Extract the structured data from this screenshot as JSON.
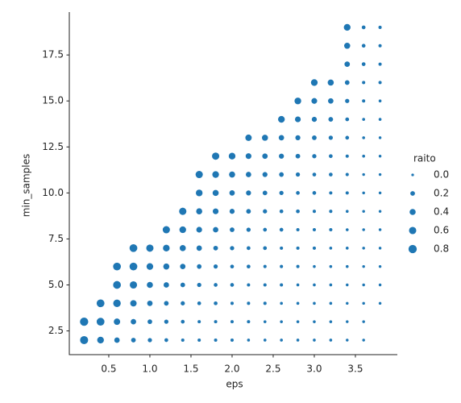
{
  "chart_data": {
    "type": "scatter",
    "xlabel": "eps",
    "ylabel": "min_samples",
    "legend_title": "raito",
    "color": "#1f77b4",
    "xlim": [
      0.02,
      4.01
    ],
    "ylim": [
      1.21,
      19.83
    ],
    "xticks": [
      0.5,
      {
        "value": 1,
        "label": "1.0"
      },
      1.5,
      {
        "value": 2,
        "label": "2.0"
      },
      2.5,
      {
        "value": 3,
        "label": "3.0"
      },
      3.5
    ],
    "yticks": [
      2.5,
      {
        "value": 5,
        "label": "5.0"
      },
      7.5,
      {
        "value": 10,
        "label": "10.0"
      },
      12.5,
      {
        "value": 15,
        "label": "15.0"
      },
      17.5
    ],
    "size_ticks": [
      {
        "value": 0,
        "label": "0.0"
      },
      0.2,
      0.4,
      0.6,
      0.8
    ],
    "x": [
      0.2,
      0.2,
      0.4,
      0.4,
      0.4,
      0.6,
      0.6,
      0.6,
      0.6,
      0.6,
      0.8,
      0.8,
      0.8,
      0.8,
      0.8,
      0.8,
      1,
      1,
      1,
      1,
      1,
      1,
      1.2,
      1.2,
      1.2,
      1.2,
      1.2,
      1.2,
      1.2,
      1.4,
      1.4,
      1.4,
      1.4,
      1.4,
      1.4,
      1.4,
      1.4,
      1.6,
      1.6,
      1.6,
      1.6,
      1.6,
      1.6,
      1.6,
      1.6,
      1.6,
      1.6,
      1.8,
      1.8,
      1.8,
      1.8,
      1.8,
      1.8,
      1.8,
      1.8,
      1.8,
      1.8,
      1.8,
      2,
      2,
      2,
      2,
      2,
      2,
      2,
      2,
      2,
      2,
      2,
      2.2,
      2.2,
      2.2,
      2.2,
      2.2,
      2.2,
      2.2,
      2.2,
      2.2,
      2.2,
      2.2,
      2.2,
      2.4,
      2.4,
      2.4,
      2.4,
      2.4,
      2.4,
      2.4,
      2.4,
      2.4,
      2.4,
      2.4,
      2.4,
      2.6,
      2.6,
      2.6,
      2.6,
      2.6,
      2.6,
      2.6,
      2.6,
      2.6,
      2.6,
      2.6,
      2.6,
      2.6,
      2.8,
      2.8,
      2.8,
      2.8,
      2.8,
      2.8,
      2.8,
      2.8,
      2.8,
      2.8,
      2.8,
      2.8,
      2.8,
      2.8,
      3,
      3,
      3,
      3,
      3,
      3,
      3,
      3,
      3,
      3,
      3,
      3,
      3,
      3,
      3,
      3.2,
      3.2,
      3.2,
      3.2,
      3.2,
      3.2,
      3.2,
      3.2,
      3.2,
      3.2,
      3.2,
      3.2,
      3.2,
      3.2,
      3.2,
      3.4,
      3.4,
      3.4,
      3.4,
      3.4,
      3.4,
      3.4,
      3.4,
      3.4,
      3.4,
      3.4,
      3.4,
      3.4,
      3.4,
      3.4,
      3.4,
      3.4,
      3.4,
      3.6,
      3.6,
      3.6,
      3.6,
      3.6,
      3.6,
      3.6,
      3.6,
      3.6,
      3.6,
      3.6,
      3.6,
      3.6,
      3.6,
      3.6,
      3.6,
      3.6,
      3.6,
      3.8,
      3.8,
      3.8,
      3.8,
      3.8,
      3.8,
      3.8,
      3.8,
      3.8,
      3.8,
      3.8,
      3.8,
      3.8,
      3.8,
      3.8,
      3.8
    ],
    "values": [
      2,
      3,
      2,
      3,
      4,
      2,
      3,
      4,
      5,
      6,
      2,
      3,
      4,
      5,
      6,
      7,
      2,
      3,
      4,
      5,
      6,
      7,
      2,
      3,
      4,
      5,
      6,
      7,
      8,
      2,
      3,
      4,
      5,
      6,
      7,
      8,
      9,
      2,
      3,
      4,
      5,
      6,
      7,
      8,
      9,
      10,
      11,
      2,
      3,
      4,
      5,
      6,
      7,
      8,
      9,
      10,
      11,
      12,
      2,
      3,
      4,
      5,
      6,
      7,
      8,
      9,
      10,
      11,
      12,
      2,
      3,
      4,
      5,
      6,
      7,
      8,
      9,
      10,
      11,
      12,
      13,
      2,
      3,
      4,
      5,
      6,
      7,
      8,
      9,
      10,
      11,
      12,
      13,
      2,
      3,
      4,
      5,
      6,
      7,
      8,
      9,
      10,
      11,
      12,
      13,
      14,
      2,
      3,
      4,
      5,
      6,
      7,
      8,
      9,
      10,
      11,
      12,
      13,
      14,
      15,
      2,
      3,
      4,
      5,
      6,
      7,
      8,
      9,
      10,
      11,
      12,
      13,
      14,
      15,
      16,
      2,
      3,
      4,
      5,
      6,
      7,
      8,
      9,
      10,
      11,
      12,
      13,
      14,
      15,
      16,
      2,
      3,
      4,
      5,
      6,
      7,
      8,
      9,
      10,
      11,
      12,
      13,
      14,
      15,
      16,
      17,
      18,
      19,
      2,
      3,
      4,
      5,
      6,
      7,
      8,
      9,
      10,
      11,
      12,
      13,
      14,
      15,
      16,
      17,
      18,
      19,
      4,
      5,
      6,
      7,
      8,
      9,
      10,
      11,
      12,
      13,
      14,
      15,
      16,
      17,
      18,
      19
    ],
    "sizes": [
      0.75,
      0.8,
      0.5,
      0.7,
      0.7,
      0.3,
      0.45,
      0.65,
      0.7,
      0.7,
      0.2,
      0.3,
      0.45,
      0.6,
      0.7,
      0.7,
      0.15,
      0.2,
      0.3,
      0.4,
      0.5,
      0.6,
      0.1,
      0.15,
      0.2,
      0.3,
      0.4,
      0.5,
      0.6,
      0.05,
      0.1,
      0.15,
      0.2,
      0.3,
      0.4,
      0.5,
      0.6,
      0.05,
      0.05,
      0.1,
      0.15,
      0.2,
      0.3,
      0.35,
      0.4,
      0.5,
      0.6,
      0.05,
      0.05,
      0.1,
      0.1,
      0.15,
      0.2,
      0.3,
      0.35,
      0.4,
      0.5,
      0.6,
      0.05,
      0.05,
      0.05,
      0.1,
      0.1,
      0.15,
      0.2,
      0.25,
      0.3,
      0.4,
      0.5,
      0.02,
      0.05,
      0.05,
      0.05,
      0.1,
      0.1,
      0.15,
      0.2,
      0.25,
      0.3,
      0.35,
      0.45,
      0.02,
      0.02,
      0.05,
      0.05,
      0.05,
      0.1,
      0.1,
      0.15,
      0.2,
      0.25,
      0.3,
      0.4,
      0.02,
      0.02,
      0.02,
      0.05,
      0.05,
      0.05,
      0.1,
      0.1,
      0.15,
      0.2,
      0.25,
      0.3,
      0.5,
      0.02,
      0.02,
      0.02,
      0.02,
      0.05,
      0.05,
      0.05,
      0.1,
      0.1,
      0.15,
      0.2,
      0.25,
      0.35,
      0.5,
      0.02,
      0.02,
      0.02,
      0.02,
      0.02,
      0.05,
      0.05,
      0.05,
      0.1,
      0.1,
      0.15,
      0.2,
      0.25,
      0.35,
      0.5,
      0.02,
      0.02,
      0.02,
      0.02,
      0.02,
      0.02,
      0.05,
      0.05,
      0.05,
      0.1,
      0.1,
      0.15,
      0.2,
      0.3,
      0.4,
      0.01,
      0.01,
      0.01,
      0.01,
      0.02,
      0.02,
      0.02,
      0.02,
      0.05,
      0.05,
      0.05,
      0.1,
      0.1,
      0.15,
      0.2,
      0.3,
      0.4,
      0.5,
      0.01,
      0.01,
      0.01,
      0.01,
      0.01,
      0.01,
      0.01,
      0.01,
      0.01,
      0.01,
      0.02,
      0.02,
      0.02,
      0.05,
      0.05,
      0.1,
      0.1,
      0.1,
      0.01,
      0.01,
      0.01,
      0.01,
      0.01,
      0.01,
      0.01,
      0.01,
      0.01,
      0.01,
      0.02,
      0.02,
      0.05,
      0.05,
      0.05,
      0.05
    ]
  }
}
